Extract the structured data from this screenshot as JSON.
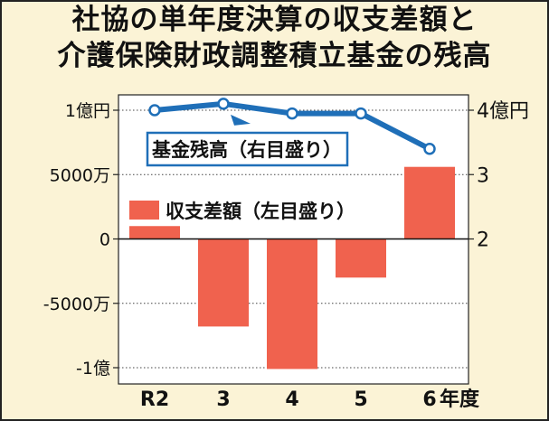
{
  "title_line1": "社協の単年度決算の収支差額と",
  "title_line2": "介護保険財政調整積立基金の残高",
  "chart_data": {
    "type": "bar+line",
    "categories": [
      "R2",
      "3",
      "4",
      "5",
      "6"
    ],
    "x_unit_label": "年度",
    "series": [
      {
        "name": "収支差額（左目盛り）",
        "type": "bar",
        "axis": "left",
        "values": [
          10000000,
          -68000000,
          -101000000,
          -30000000,
          56000000
        ],
        "color": "#f0624e"
      },
      {
        "name": "基金残高（右目盛り）",
        "type": "line",
        "axis": "right",
        "values": [
          4.0,
          4.1,
          3.95,
          3.95,
          3.4
        ],
        "color": "#1f6fb8"
      }
    ],
    "left_axis": {
      "ylim": [
        -100000000,
        100000000
      ],
      "ticks": [
        100000000,
        50000000,
        0,
        -50000000,
        -100000000
      ],
      "tick_labels": [
        "1億円",
        "5000万",
        "0",
        "-5000万",
        "-1億"
      ]
    },
    "right_axis": {
      "ylim": [
        2,
        4
      ],
      "ticks": [
        4,
        3,
        2
      ],
      "tick_labels": [
        "4億円",
        "3",
        "2"
      ]
    },
    "legend": {
      "line_label": "基金残高（右目盛り）",
      "bar_label": "収支差額（左目盛り）"
    },
    "grid": "horizontal dotted"
  }
}
